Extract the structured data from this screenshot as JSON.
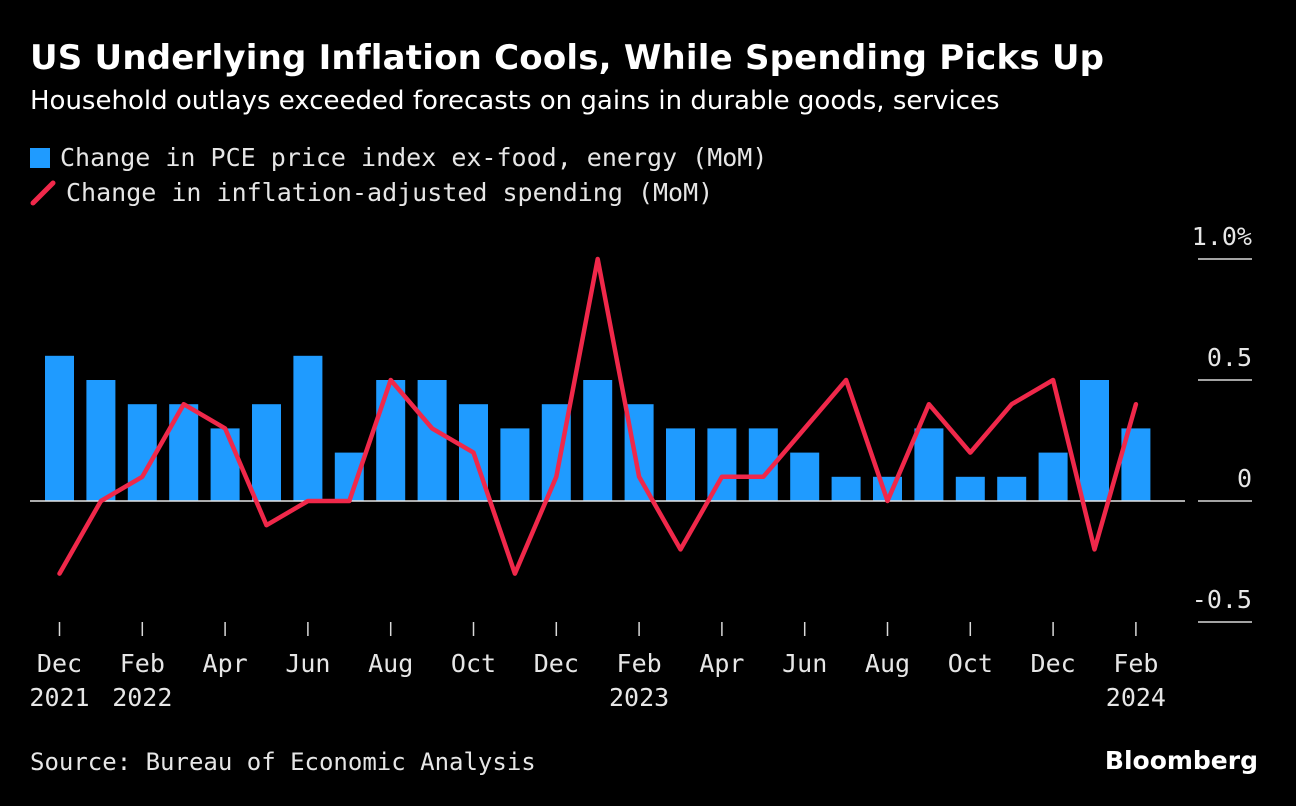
{
  "header": {
    "title": "US Underlying Inflation Cools, While Spending Picks Up",
    "subtitle": "Household outlays exceeded forecasts on gains in durable goods, services"
  },
  "footer": {
    "source": "Source: Bureau of Economic Analysis",
    "brand": "Bloomberg"
  },
  "chart_data": {
    "type": "bar",
    "categories": [
      "Dec 2021",
      "Jan 2022",
      "Feb 2022",
      "Mar 2022",
      "Apr 2022",
      "May 2022",
      "Jun 2022",
      "Jul 2022",
      "Aug 2022",
      "Sep 2022",
      "Oct 2022",
      "Nov 2022",
      "Dec 2022",
      "Jan 2023",
      "Feb 2023",
      "Mar 2023",
      "Apr 2023",
      "May 2023",
      "Jun 2023",
      "Jul 2023",
      "Aug 2023",
      "Sep 2023",
      "Oct 2023",
      "Nov 2023",
      "Dec 2023",
      "Jan 2024",
      "Feb 2024"
    ],
    "series": [
      {
        "name": "Change in PCE price index ex-food, energy (MoM)",
        "type": "bar",
        "color": "#1f9bff",
        "values": [
          0.6,
          0.5,
          0.4,
          0.4,
          0.3,
          0.4,
          0.6,
          0.2,
          0.5,
          0.5,
          0.4,
          0.3,
          0.4,
          0.5,
          0.4,
          0.3,
          0.3,
          0.3,
          0.2,
          0.1,
          0.1,
          0.3,
          0.1,
          0.1,
          0.2,
          0.5,
          0.3
        ]
      },
      {
        "name": "Change in inflation-adjusted spending (MoM)",
        "type": "line",
        "color": "#f0284a",
        "values": [
          -0.3,
          0.0,
          0.1,
          0.4,
          0.3,
          -0.1,
          0.0,
          0.0,
          0.5,
          0.3,
          0.2,
          -0.3,
          0.1,
          1.0,
          0.1,
          -0.2,
          0.1,
          0.1,
          0.3,
          0.5,
          0.0,
          0.4,
          0.2,
          0.4,
          0.5,
          -0.2,
          0.4
        ]
      }
    ],
    "ylim": [
      -0.5,
      1.0
    ],
    "yticks": [
      {
        "value": 1.0,
        "label": "1.0%"
      },
      {
        "value": 0.5,
        "label": "0.5"
      },
      {
        "value": 0.0,
        "label": "0"
      },
      {
        "value": -0.5,
        "label": "-0.5"
      }
    ],
    "xticks": [
      {
        "index": 0,
        "month": "Dec",
        "year": "2021"
      },
      {
        "index": 2,
        "month": "Feb",
        "year": "2022"
      },
      {
        "index": 4,
        "month": "Apr",
        "year": ""
      },
      {
        "index": 6,
        "month": "Jun",
        "year": ""
      },
      {
        "index": 8,
        "month": "Aug",
        "year": ""
      },
      {
        "index": 10,
        "month": "Oct",
        "year": ""
      },
      {
        "index": 12,
        "month": "Dec",
        "year": ""
      },
      {
        "index": 14,
        "month": "Feb",
        "year": "2023"
      },
      {
        "index": 16,
        "month": "Apr",
        "year": ""
      },
      {
        "index": 18,
        "month": "Jun",
        "year": ""
      },
      {
        "index": 20,
        "month": "Aug",
        "year": ""
      },
      {
        "index": 22,
        "month": "Oct",
        "year": ""
      },
      {
        "index": 24,
        "month": "Dec",
        "year": ""
      },
      {
        "index": 26,
        "month": "Feb",
        "year": "2024"
      }
    ],
    "legend_position": "top-left",
    "grid": false
  }
}
